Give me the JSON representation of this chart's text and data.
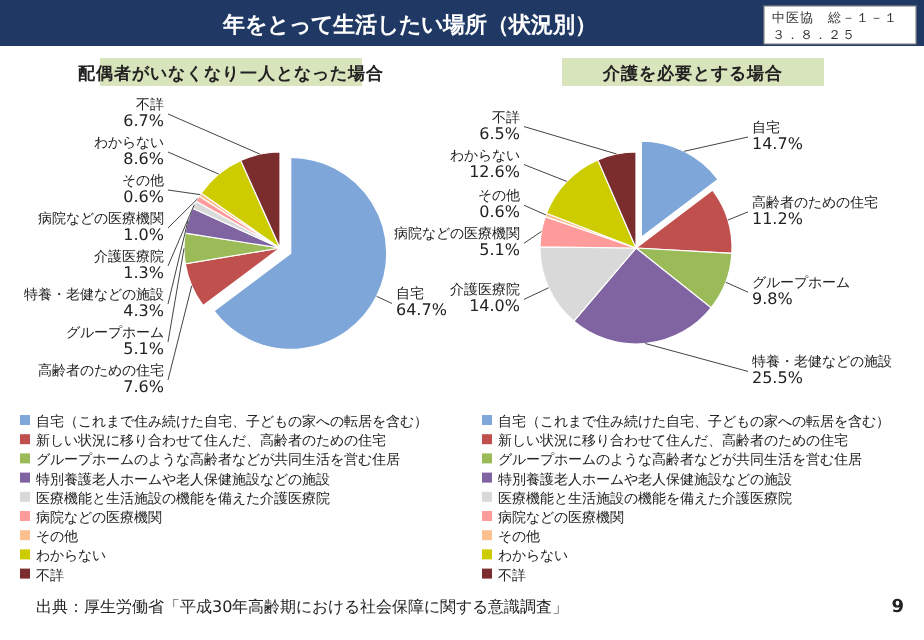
{
  "chart_data": [
    {
      "type": "pie",
      "title": "配偶者がいなくなり一人となった場合",
      "categories": [
        "自宅（これまで住み続けた自宅、子どもの家への転居を含む）",
        "新しい状況に移り合わせて住んだ、高齢者のための住宅",
        "グループホームのような高齢者などが共同生活を営む住居",
        "特別養護老人ホームや老人保健施設などの施設",
        "医療機能と生活施設の機能を備えた介護医療院",
        "病院などの医療機関",
        "その他",
        "わからない",
        "不詳"
      ],
      "values": [
        64.7,
        7.6,
        5.1,
        4.3,
        1.3,
        1.0,
        0.6,
        8.6,
        6.7
      ],
      "colors": [
        "#7ea6d8",
        "#c0504d",
        "#9bbb59",
        "#8064a2",
        "#d9d9d9",
        "#ff9b9b",
        "#fac090",
        "#cccc00",
        "#7b2c2c"
      ],
      "value_labels": [
        "自宅\n64.7%",
        "高齢者のための住宅\n7.6%",
        "グループホーム\n5.1%",
        "特養・老健などの施設\n4.3%",
        "介護医療院\n1.3%",
        "病院などの医療機関\n1.0%",
        "その他\n0.6%",
        "わからない\n8.6%",
        "不詳\n6.7%"
      ],
      "legend": "bottom",
      "annotations": [
        "年をとって生活したい場所（状況別）",
        "中医協　総－１－１",
        "３．８．２５",
        "出典：厚生労働省「平成30年高齢期における社会保障に関する意識調査」",
        "9"
      ]
    },
    {
      "type": "pie",
      "title": "介護を必要とする場合",
      "categories": [
        "自宅（これまで住み続けた自宅、子どもの家への転居を含む）",
        "新しい状況に移り合わせて住んだ、高齢者のための住宅",
        "グループホームのような高齢者などが共同生活を営む住居",
        "特別養護老人ホームや老人保健施設などの施設",
        "医療機能と生活施設の機能を備えた介護医療院",
        "病院などの医療機関",
        "その他",
        "わからない",
        "不詳"
      ],
      "values": [
        14.7,
        11.2,
        9.8,
        25.5,
        14.0,
        5.1,
        0.6,
        12.6,
        6.5
      ],
      "colors": [
        "#7ea6d8",
        "#c0504d",
        "#9bbb59",
        "#8064a2",
        "#d9d9d9",
        "#ff9b9b",
        "#fac090",
        "#cccc00",
        "#7b2c2c"
      ],
      "value_labels": [
        "自宅\n14.7%",
        "高齢者のための住宅\n11.2%",
        "グループホーム\n9.8%",
        "特養・老健などの施設\n25.5%",
        "介護医療院\n14.0%",
        "病院などの医療機関\n5.1%",
        "その他\n0.6%",
        "わからない\n12.6%",
        "不詳\n6.5%"
      ],
      "legend": "bottom"
    }
  ]
}
